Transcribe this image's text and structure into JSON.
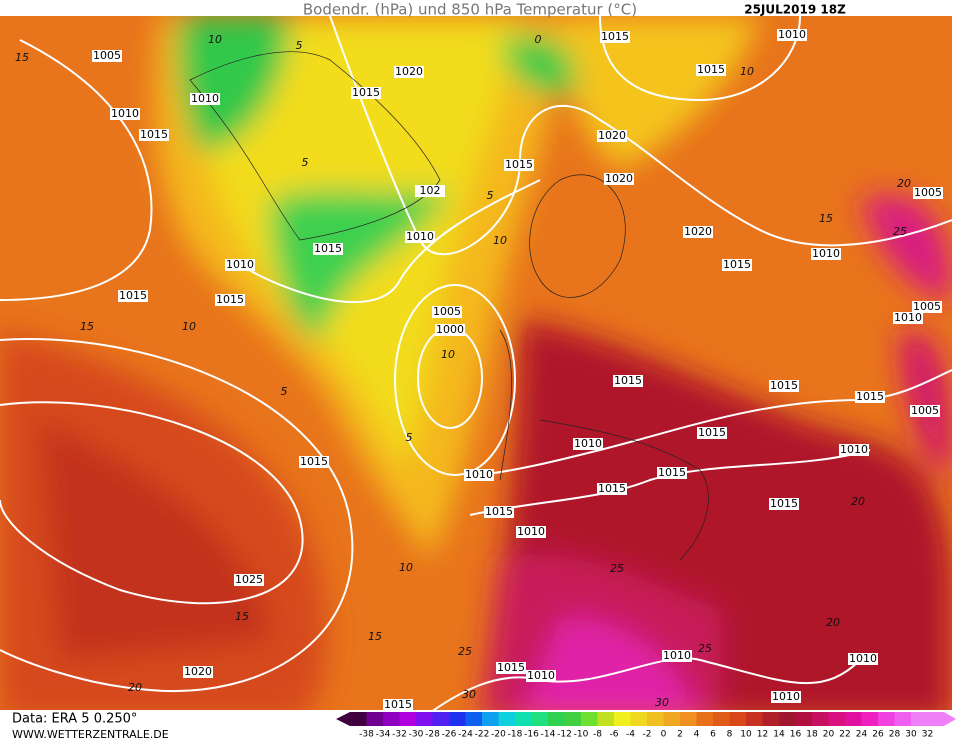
{
  "header": {
    "title": "Bodendr. (hPa) und 850 hPa Temperatur (°C)",
    "date": "25JUL2019 18Z"
  },
  "isobar_labels": [
    "1005",
    "1010",
    "1015",
    "1010",
    "1020",
    "1015",
    "1015",
    "1010",
    "1015",
    "1020",
    "1015",
    "1020",
    "102",
    "1010",
    "1015",
    "1010",
    "1015",
    "1015",
    "1020",
    "1015",
    "1010",
    "1005",
    "1005",
    "1010",
    "1005",
    "1000",
    "1015",
    "1015",
    "1015",
    "1005",
    "1015",
    "1010",
    "1010",
    "1015",
    "1015",
    "1015",
    "1010",
    "1015",
    "1015",
    "1010",
    "1025",
    "1020",
    "1015",
    "1010",
    "1010",
    "1010",
    "1010",
    "1015"
  ],
  "temperature_labels": [
    "15",
    "10",
    "5",
    "10",
    "10",
    "5",
    "5",
    "10",
    "15",
    "10",
    "15",
    "15",
    "20",
    "25",
    "20",
    "20",
    "25",
    "30",
    "30",
    "25",
    "15",
    "20",
    "25",
    "10",
    "5",
    "0",
    "5"
  ],
  "footer": {
    "data": "Data: ERA 5 0.250°",
    "site": "WWW.WETTERZENTRALE.DE"
  },
  "legend": {
    "labels": [
      "-38",
      "-34",
      "-32",
      "-30",
      "-28",
      "-26",
      "-24",
      "-22",
      "-20",
      "-18",
      "-16",
      "-14",
      "-12",
      "-10",
      "-8",
      "-6",
      "-4",
      "-2",
      "0",
      "2",
      "4",
      "6",
      "8",
      "10",
      "12",
      "14",
      "16",
      "18",
      "20",
      "22",
      "24",
      "26",
      "28",
      "30",
      "32"
    ]
  }
}
